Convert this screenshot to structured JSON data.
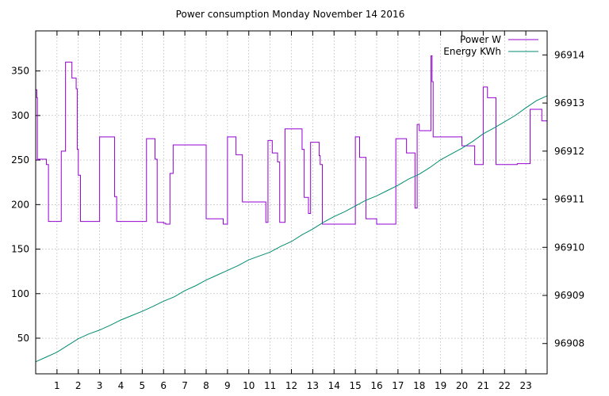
{
  "chart_data": {
    "type": "line",
    "title": "Power consumption Monday November 14 2016",
    "xlabel": "",
    "ylabel": "",
    "y2label": "",
    "xlim": [
      0,
      24
    ],
    "ylim": [
      10,
      395
    ],
    "y2lim": [
      96907.37,
      96914.5
    ],
    "x_ticks": [
      1,
      2,
      3,
      4,
      5,
      6,
      7,
      8,
      9,
      10,
      11,
      12,
      13,
      14,
      15,
      16,
      17,
      18,
      19,
      20,
      21,
      22,
      23
    ],
    "y_ticks": [
      50,
      100,
      150,
      200,
      250,
      300,
      350
    ],
    "y2_ticks": [
      96908,
      96909,
      96910,
      96911,
      96912,
      96913,
      96914
    ],
    "grid": true,
    "legend_position": "top-right",
    "series": [
      {
        "name": "Power W",
        "axis": "left",
        "color": "#9400d3",
        "step": true,
        "x": [
          0,
          0.05,
          0.08,
          0.1,
          0.12,
          0.15,
          0.5,
          0.6,
          1.2,
          1.4,
          1.7,
          1.9,
          1.95,
          2.0,
          2.1,
          2.2,
          2.25,
          3.0,
          3.2,
          3.7,
          3.8,
          3.9,
          4.5,
          5.0,
          5.2,
          5.4,
          5.6,
          5.7,
          6.0,
          6.1,
          6.3,
          6.45,
          7.0,
          7.5,
          8.0,
          8.3,
          8.6,
          8.8,
          9.0,
          9.2,
          9.4,
          9.7,
          10.0,
          10.5,
          10.8,
          10.9,
          11.0,
          11.1,
          11.35,
          11.45,
          11.7,
          11.8,
          12.0,
          12.5,
          12.6,
          12.75,
          12.8,
          12.9,
          13.0,
          13.3,
          13.35,
          13.45,
          13.5,
          14.0,
          14.6,
          15.0,
          15.15,
          15.2,
          15.5,
          16.0,
          16.5,
          16.8,
          16.9,
          17.3,
          17.4,
          17.8,
          17.9,
          18.0,
          18.5,
          18.55,
          18.6,
          18.65,
          18.7,
          19.0,
          19.8,
          20.0,
          20.5,
          20.55,
          20.6,
          21.0,
          21.15,
          21.2,
          21.6,
          22.0,
          22.6,
          22.7,
          23.2,
          23.5,
          23.75,
          24.0
        ],
        "values": [
          329,
          320,
          250,
          250,
          251,
          251,
          245,
          181,
          260,
          360,
          342,
          330,
          262,
          233,
          181,
          181,
          181,
          276,
          276,
          209,
          181,
          181,
          181,
          181,
          274,
          274,
          251,
          180,
          179,
          178,
          235,
          267,
          267,
          267,
          184,
          184,
          184,
          178,
          276,
          276,
          256,
          203,
          203,
          203,
          180,
          272,
          272,
          258,
          248,
          180,
          285,
          285,
          285,
          262,
          208,
          208,
          190,
          270,
          270,
          255,
          245,
          178,
          178,
          178,
          178,
          276,
          276,
          253,
          184,
          178,
          178,
          178,
          274,
          274,
          258,
          196,
          290,
          283,
          283,
          367,
          338,
          276,
          276,
          276,
          276,
          266,
          266,
          266,
          245,
          332,
          332,
          320,
          245,
          245,
          246,
          246,
          307,
          307,
          294,
          294
        ]
      },
      {
        "name": "Energy KWh",
        "axis": "right",
        "color": "#008b6e",
        "step": false,
        "x": [
          0,
          0.5,
          1.0,
          1.5,
          2.0,
          2.5,
          3.0,
          3.5,
          4.0,
          4.5,
          5.0,
          5.5,
          6.0,
          6.5,
          7.0,
          7.5,
          8.0,
          8.5,
          9.0,
          9.5,
          10.0,
          10.5,
          11.0,
          11.5,
          12.0,
          12.5,
          13.0,
          13.5,
          14.0,
          14.5,
          15.0,
          15.5,
          16.0,
          16.5,
          17.0,
          17.5,
          18.0,
          18.5,
          19.0,
          19.5,
          20.0,
          20.5,
          21.0,
          21.5,
          22.0,
          22.5,
          23.0,
          23.5,
          24.0
        ],
        "values": [
          96907.62,
          96907.72,
          96907.82,
          96907.96,
          96908.1,
          96908.2,
          96908.28,
          96908.38,
          96908.49,
          96908.58,
          96908.67,
          96908.77,
          96908.88,
          96908.97,
          96909.1,
          96909.2,
          96909.32,
          96909.42,
          96909.52,
          96909.62,
          96909.74,
          96909.82,
          96909.9,
          96910.02,
          96910.12,
          96910.26,
          96910.38,
          96910.52,
          96910.64,
          96910.74,
          96910.86,
          96910.98,
          96911.07,
          96911.18,
          96911.29,
          96911.42,
          96911.52,
          96911.66,
          96911.82,
          96911.94,
          96912.06,
          96912.2,
          96912.36,
          96912.48,
          96912.61,
          96912.74,
          96912.9,
          96913.05,
          96913.15
        ]
      }
    ]
  }
}
